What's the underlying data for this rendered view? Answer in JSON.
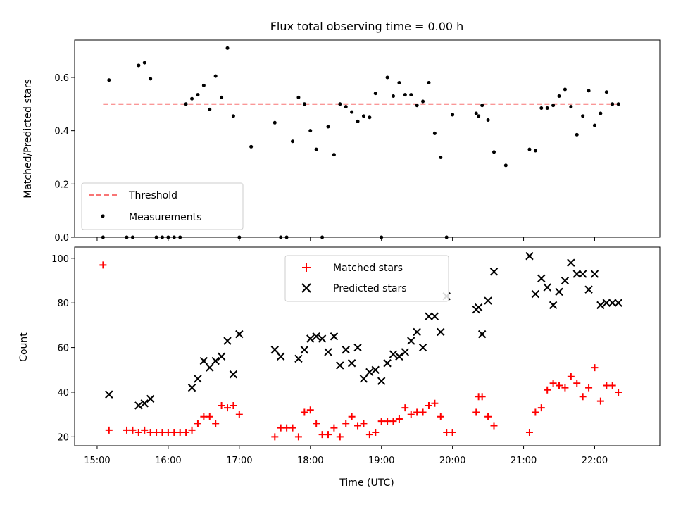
{
  "figure": {
    "title": "Flux total observing time = 0.00 h",
    "xlabel": "Time (UTC)"
  },
  "chart_data": [
    {
      "type": "scatter",
      "panel": "top",
      "title": "Flux total observing time = 0.00 h",
      "xlabel": "",
      "ylabel": "Matched/Predicted stars",
      "xlim": [
        "14:41",
        "22:55"
      ],
      "ylim": [
        0,
        0.74
      ],
      "yticks": [
        0.0,
        0.2,
        0.4,
        0.6
      ],
      "ytick_labels": [
        "0.0",
        "0.2",
        "0.4",
        "0.6"
      ],
      "legend": {
        "placement": "lower-left",
        "entries": [
          "Threshold",
          "Measurements"
        ]
      },
      "series": [
        {
          "name": "Threshold",
          "kind": "dashed-line",
          "color": "#f87575",
          "x": [
            "15:05",
            "22:21"
          ],
          "y": [
            0.5,
            0.5
          ]
        },
        {
          "name": "Measurements",
          "kind": "points",
          "color": "#000000",
          "x": [
            "15:05",
            "15:10",
            "15:25",
            "15:30",
            "15:35",
            "15:40",
            "15:45",
            "15:50",
            "15:55",
            "16:00",
            "16:05",
            "16:10",
            "16:15",
            "16:20",
            "16:25",
            "16:30",
            "16:35",
            "16:40",
            "16:45",
            "16:50",
            "16:55",
            "17:00",
            "17:10",
            "17:30",
            "17:35",
            "17:40",
            "17:45",
            "17:50",
            "17:55",
            "18:00",
            "18:05",
            "18:10",
            "18:15",
            "18:20",
            "18:25",
            "18:30",
            "18:35",
            "18:40",
            "18:45",
            "18:50",
            "18:55",
            "19:00",
            "19:05",
            "19:10",
            "19:15",
            "19:20",
            "19:25",
            "19:30",
            "19:35",
            "19:40",
            "19:45",
            "19:50",
            "19:55",
            "20:00",
            "20:20",
            "20:22",
            "20:25",
            "20:30",
            "20:35",
            "20:45",
            "21:05",
            "21:10",
            "21:15",
            "21:20",
            "21:25",
            "21:30",
            "21:35",
            "21:40",
            "21:45",
            "21:50",
            "21:55",
            "22:00",
            "22:05",
            "22:10",
            "22:15",
            "22:20"
          ],
          "y": [
            0.0,
            0.59,
            0.0,
            0.0,
            0.645,
            0.655,
            0.595,
            0.0,
            0.0,
            0.0,
            0.0,
            0.0,
            0.5,
            0.52,
            0.535,
            0.57,
            0.48,
            0.605,
            0.525,
            0.71,
            0.455,
            0.0,
            0.34,
            0.43,
            0.0,
            0.0,
            0.36,
            0.525,
            0.5,
            0.4,
            0.33,
            0.0,
            0.415,
            0.31,
            0.5,
            0.49,
            0.47,
            0.435,
            0.455,
            0.45,
            0.54,
            0.0,
            0.6,
            0.53,
            0.58,
            0.535,
            0.535,
            0.495,
            0.51,
            0.58,
            0.39,
            0.3,
            0.0,
            0.46,
            0.465,
            0.455,
            0.495,
            0.44,
            0.32,
            0.27,
            0.33,
            0.325,
            0.485,
            0.485,
            0.495,
            0.53,
            0.555,
            0.49,
            0.385,
            0.455,
            0.55,
            0.42,
            0.465,
            0.545,
            0.5,
            0.5
          ]
        }
      ]
    },
    {
      "type": "scatter",
      "panel": "bottom",
      "xlabel": "Time (UTC)",
      "ylabel": "Count",
      "xlim": [
        "14:41",
        "22:55"
      ],
      "ylim": [
        16,
        105
      ],
      "xticks": [
        "15:00",
        "16:00",
        "17:00",
        "18:00",
        "19:00",
        "20:00",
        "21:00",
        "22:00"
      ],
      "yticks": [
        20,
        40,
        60,
        80,
        100
      ],
      "legend": {
        "placement": "upper-center",
        "entries": [
          "Matched stars",
          "Predicted stars"
        ]
      },
      "series": [
        {
          "name": "Matched stars",
          "marker": "plus",
          "color": "#ff0000",
          "x": [
            "15:05",
            "15:10",
            "15:25",
            "15:30",
            "15:35",
            "15:40",
            "15:45",
            "15:50",
            "15:55",
            "16:00",
            "16:05",
            "16:10",
            "16:15",
            "16:20",
            "16:25",
            "16:30",
            "16:35",
            "16:40",
            "16:45",
            "16:50",
            "16:55",
            "17:00",
            "17:30",
            "17:35",
            "17:40",
            "17:45",
            "17:50",
            "17:55",
            "18:00",
            "18:05",
            "18:10",
            "18:15",
            "18:20",
            "18:25",
            "18:30",
            "18:35",
            "18:40",
            "18:45",
            "18:50",
            "18:55",
            "19:00",
            "19:05",
            "19:10",
            "19:15",
            "19:20",
            "19:25",
            "19:30",
            "19:35",
            "19:40",
            "19:45",
            "19:50",
            "19:55",
            "20:00",
            "20:20",
            "20:22",
            "20:25",
            "20:30",
            "20:35",
            "21:05",
            "21:10",
            "21:15",
            "21:20",
            "21:25",
            "21:30",
            "21:35",
            "21:40",
            "21:45",
            "21:50",
            "21:55",
            "22:00",
            "22:05",
            "22:10",
            "22:15",
            "22:20"
          ],
          "y": [
            97,
            23,
            23,
            23,
            22,
            23,
            22,
            22,
            22,
            22,
            22,
            22,
            22,
            23,
            26,
            29,
            29,
            26,
            34,
            33,
            34,
            30,
            20,
            24,
            24,
            24,
            20,
            31,
            32,
            26,
            21,
            21,
            24,
            20,
            26,
            29,
            25,
            26,
            21,
            22,
            27,
            27,
            27,
            28,
            33,
            30,
            31,
            31,
            34,
            35,
            29,
            22,
            22,
            31,
            38,
            38,
            29,
            25,
            22,
            31,
            33,
            41,
            44,
            43,
            42,
            47,
            44,
            38,
            42,
            51,
            36,
            43,
            43,
            40
          ]
        },
        {
          "name": "Predicted stars",
          "marker": "x",
          "color": "#000000",
          "x": [
            "15:10",
            "15:35",
            "15:40",
            "15:45",
            "16:20",
            "16:25",
            "16:30",
            "16:35",
            "16:40",
            "16:45",
            "16:50",
            "16:55",
            "17:00",
            "17:30",
            "17:35",
            "17:50",
            "17:55",
            "18:00",
            "18:05",
            "18:10",
            "18:15",
            "18:20",
            "18:25",
            "18:30",
            "18:35",
            "18:40",
            "18:45",
            "18:50",
            "18:55",
            "19:00",
            "19:05",
            "19:10",
            "19:15",
            "19:20",
            "19:25",
            "19:30",
            "19:35",
            "19:40",
            "19:45",
            "19:50",
            "19:55",
            "20:20",
            "20:22",
            "20:25",
            "20:30",
            "20:35",
            "21:05",
            "21:10",
            "21:15",
            "21:20",
            "21:25",
            "21:30",
            "21:35",
            "21:40",
            "21:45",
            "21:50",
            "21:55",
            "22:00",
            "22:05",
            "22:10",
            "22:15",
            "22:20"
          ],
          "y": [
            39,
            34,
            35,
            37,
            42,
            46,
            54,
            51,
            54,
            56,
            63,
            48,
            66,
            59,
            56,
            55,
            59,
            64,
            65,
            64,
            58,
            65,
            52,
            59,
            53,
            60,
            46,
            49,
            50,
            45,
            53,
            57,
            56,
            58,
            63,
            67,
            60,
            74,
            74,
            67,
            83,
            77,
            78,
            66,
            81,
            94,
            101,
            84,
            91,
            87,
            79,
            85,
            90,
            98,
            93,
            93,
            86,
            93,
            79,
            80,
            80,
            80
          ]
        }
      ]
    }
  ]
}
